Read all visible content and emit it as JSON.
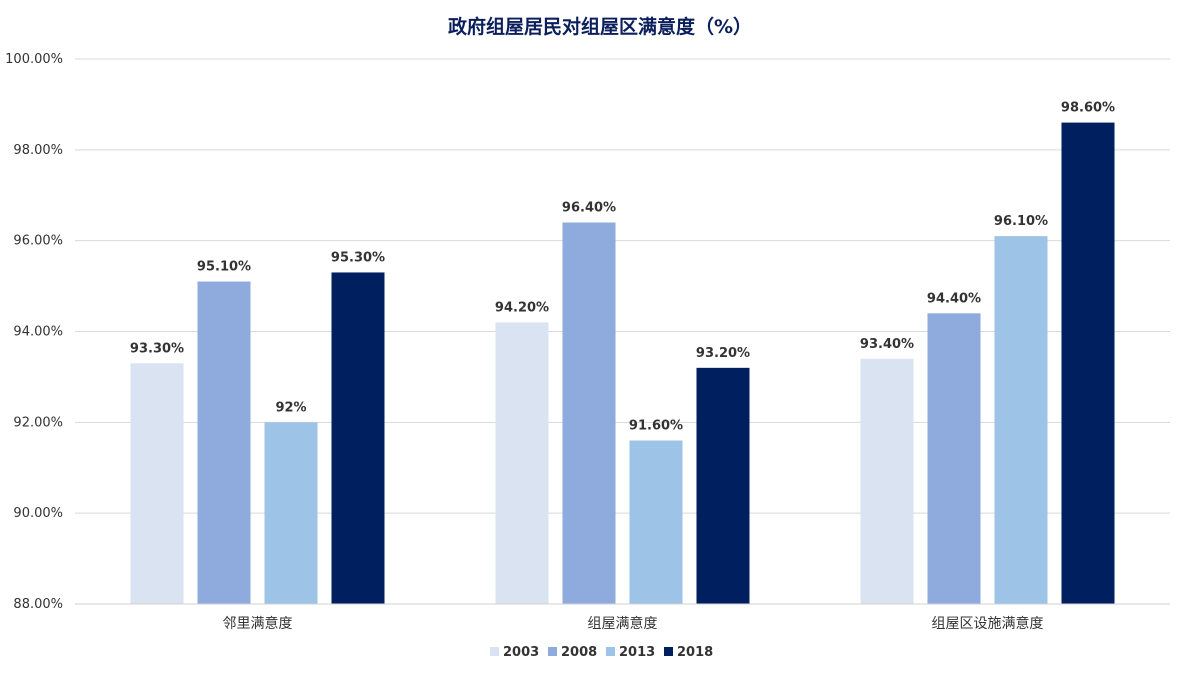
{
  "chart_data": {
    "type": "bar",
    "title": "政府组屋居民对组屋区满意度（%）",
    "xlabel": "",
    "ylabel": "",
    "ylim": [
      88,
      100
    ],
    "yticks": [
      "88.00%",
      "90.00%",
      "92.00%",
      "94.00%",
      "96.00%",
      "98.00%",
      "100.00%"
    ],
    "grid": true,
    "legend_position": "bottom",
    "categories": [
      "邻里满意度",
      "组屋满意度",
      "组屋区设施满意度"
    ],
    "series": [
      {
        "name": "2003",
        "color": "#dae3f1",
        "values": [
          93.3,
          94.2,
          93.4
        ],
        "labels": [
          "93.30%",
          "94.20%",
          "93.40%"
        ]
      },
      {
        "name": "2008",
        "color": "#8faadc",
        "values": [
          95.1,
          96.4,
          94.4
        ],
        "labels": [
          "95.10%",
          "96.40%",
          "94.40%"
        ]
      },
      {
        "name": "2013",
        "color": "#9dc3e6",
        "values": [
          92.0,
          91.6,
          96.1
        ],
        "labels": [
          "92%",
          "91.60%",
          "96.10%"
        ]
      },
      {
        "name": "2018",
        "color": "#001f5f",
        "values": [
          95.3,
          93.2,
          98.6
        ],
        "labels": [
          "95.30%",
          "93.20%",
          "98.60%"
        ]
      }
    ]
  }
}
